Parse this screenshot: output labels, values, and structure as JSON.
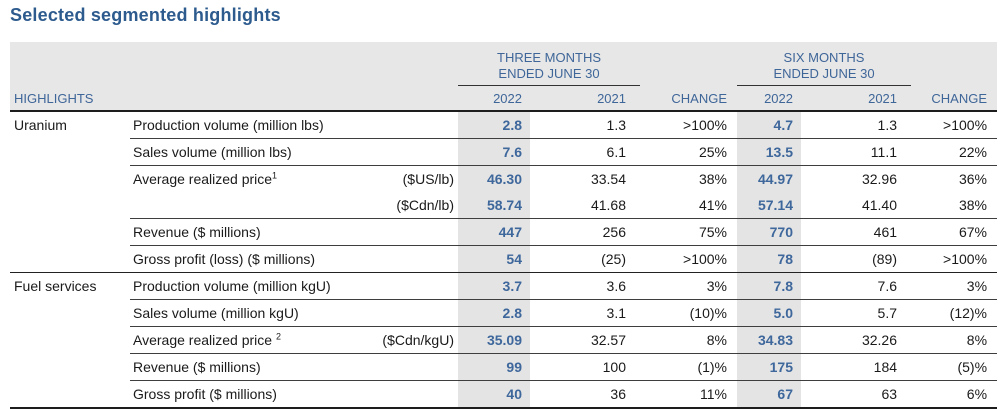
{
  "page": {
    "title": "Selected segmented highlights"
  },
  "colors": {
    "title_blue": "#2d5b8e",
    "header_blue": "#3f6699",
    "value_blue": "#3e679c",
    "header_bg": "#e7e7e7",
    "shaded_column_bg": "#e4e4e4"
  },
  "table": {
    "highlights_label": "HIGHLIGHTS",
    "period_groups": [
      {
        "line1": "THREE MONTHS",
        "line2": "ENDED JUNE 30"
      },
      {
        "line1": "SIX MONTHS",
        "line2": "ENDED JUNE 30"
      }
    ],
    "year_headers": [
      "2022",
      "2021",
      "CHANGE",
      "2022",
      "2021",
      "CHANGE"
    ],
    "sections": [
      {
        "segment": "Uranium",
        "rows": [
          {
            "label": "Production volume (million lbs)",
            "values": [
              "2.8",
              "1.3",
              ">100%",
              "4.7",
              "1.3",
              ">100%"
            ]
          },
          {
            "label": "Sales volume (million lbs)",
            "values": [
              "7.6",
              "6.1",
              "25%",
              "13.5",
              "11.1",
              "22%"
            ]
          },
          {
            "label": "Average realized price",
            "sup": "1",
            "unit": "($US/lb)",
            "values": [
              "46.30",
              "33.54",
              "38%",
              "44.97",
              "32.96",
              "36%"
            ]
          },
          {
            "label": "",
            "unit": "($Cdn/lb)",
            "no_line": true,
            "values": [
              "58.74",
              "41.68",
              "41%",
              "57.14",
              "41.40",
              "38%"
            ]
          },
          {
            "label": "Revenue ($ millions)",
            "values": [
              "447",
              "256",
              "75%",
              "770",
              "461",
              "67%"
            ]
          },
          {
            "label": "Gross profit (loss) ($ millions)",
            "values": [
              "54",
              "(25)",
              ">100%",
              "78",
              "(89)",
              ">100%"
            ]
          }
        ]
      },
      {
        "segment": "Fuel services",
        "rows": [
          {
            "label": "Production volume (million kgU)",
            "values": [
              "3.7",
              "3.6",
              "3%",
              "7.8",
              "7.6",
              "3%"
            ]
          },
          {
            "label": "Sales volume (million kgU)",
            "values": [
              "2.8",
              "3.1",
              "(10)%",
              "5.0",
              "5.7",
              "(12)%"
            ]
          },
          {
            "label": "Average realized price ",
            "sup": "2",
            "unit": "($Cdn/kgU)",
            "values": [
              "35.09",
              "32.57",
              "8%",
              "34.83",
              "32.26",
              "8%"
            ]
          },
          {
            "label": "Revenue ($ millions)",
            "values": [
              "99",
              "100",
              "(1)%",
              "175",
              "184",
              "(5)%"
            ]
          },
          {
            "label": "Gross profit ($ millions)",
            "values": [
              "40",
              "36",
              "11%",
              "67",
              "63",
              "6%"
            ]
          }
        ]
      }
    ]
  }
}
